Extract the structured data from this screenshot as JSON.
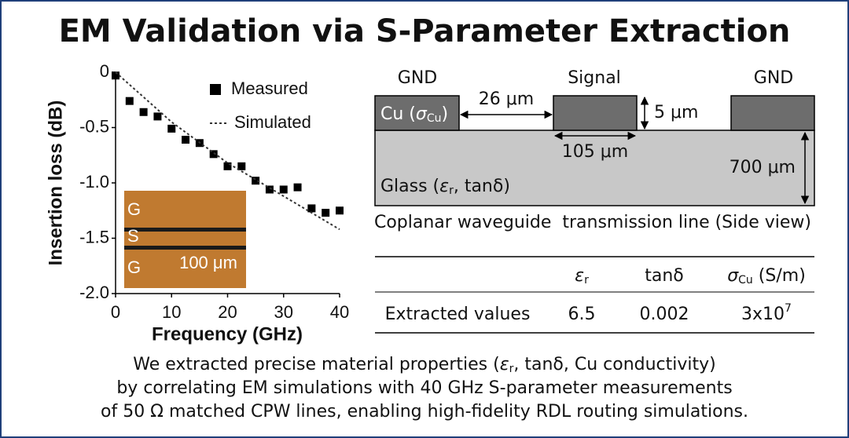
{
  "title": "EM Validation via S-Parameter Extraction",
  "chart_data": {
    "type": "scatter-line",
    "xlabel": "Frequency (GHz)",
    "ylabel": "Insertion loss (dB)",
    "xlim": [
      0,
      40
    ],
    "ylim": [
      -2,
      0
    ],
    "xticks": [
      0,
      10,
      20,
      30,
      40
    ],
    "yticks": [
      0,
      -0.5,
      {
        "value": -1,
        "label": "-1.0"
      },
      -1.5,
      {
        "value": -2,
        "label": "-2.0"
      }
    ],
    "legend": "upper right",
    "series": [
      {
        "name": "Measured",
        "color": "#000000",
        "marker": "square",
        "x": [
          0,
          2.5,
          5,
          7.5,
          10,
          12.5,
          15,
          17.5,
          20,
          22.5,
          25,
          27.5,
          30,
          32.5,
          35,
          37.5,
          40
        ],
        "values": [
          -0.03,
          -0.26,
          -0.36,
          -0.4,
          -0.51,
          -0.61,
          -0.64,
          -0.74,
          -0.85,
          -0.85,
          -0.98,
          -1.06,
          -1.06,
          -1.04,
          -1.23,
          -1.27,
          -1.25
        ]
      },
      {
        "name": "Simulated",
        "color": "#333333",
        "marker": "dashed",
        "x": [
          0,
          10,
          20,
          30,
          40
        ],
        "values": [
          0,
          -0.45,
          -0.82,
          -1.12,
          -1.42
        ]
      }
    ],
    "inset_labels": [
      "G",
      "S",
      "G",
      "100 μm"
    ]
  },
  "diagram": {
    "gnd_left": "GND",
    "signal": "Signal",
    "gnd_right": "GND",
    "gap": "26 μm",
    "thickness": "5 μm",
    "width": "105 μm",
    "substrate": "700 μm",
    "cu_label": [
      "Cu (",
      "σ",
      "Cu",
      ")"
    ],
    "glass_label": [
      "Glass (",
      "ε",
      "r",
      ", tanδ)"
    ],
    "caption": "Coplanar waveguide  transmission line (Side view)"
  },
  "table": {
    "header": [
      [
        "ε",
        "r"
      ],
      [
        "tanδ"
      ],
      [
        "σ",
        "Cu",
        " (S/m)"
      ]
    ],
    "row": [
      "Extracted values",
      "6.5",
      "0.002",
      [
        "3x10",
        "7"
      ]
    ]
  },
  "footer": [
    [
      "We extracted precise material properties (",
      "ε",
      "r",
      ", tanδ, Cu conductivity)"
    ],
    "by correlating EM simulations with 40 GHz S-parameter measurements",
    "of 50 Ω matched CPW lines, enabling high-fidelity RDL routing simulations."
  ]
}
